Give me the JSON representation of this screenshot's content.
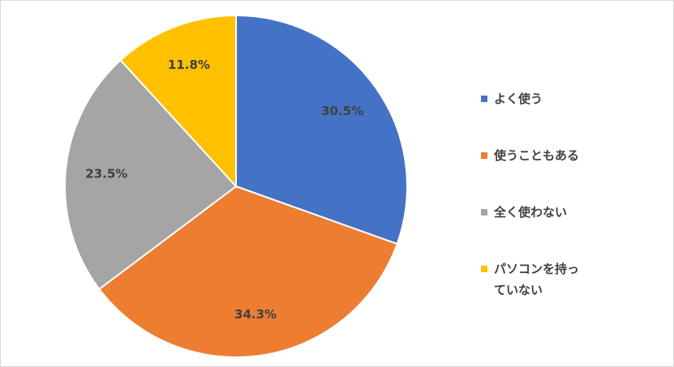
{
  "chart_data": {
    "type": "pie",
    "categories": [
      "よく使う",
      "使うこともある",
      "全く使わない",
      "パソコンを持っていない"
    ],
    "values": [
      30.5,
      34.3,
      23.5,
      11.8
    ],
    "value_labels": [
      "30.5%",
      "34.3%",
      "23.5%",
      "11.8%"
    ],
    "colors": [
      "#4472c4",
      "#ed7d31",
      "#a5a5a5",
      "#ffc000"
    ],
    "legend": "right"
  }
}
